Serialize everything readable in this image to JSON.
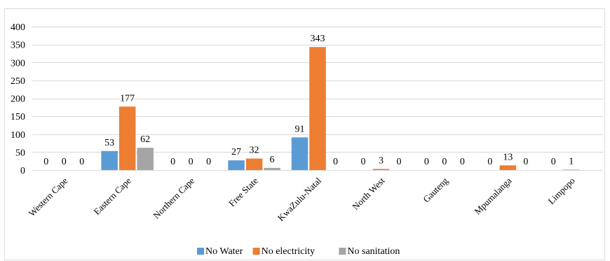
{
  "chart_data": {
    "type": "bar",
    "categories": [
      "Western Cape",
      "Eastern Cape",
      "Northern Cape",
      "Free State",
      "KwaZulu-Natal",
      "North West",
      "Gauteng",
      "Mpumalanga",
      "Limpopo"
    ],
    "series": [
      {
        "name": "No Water",
        "values": [
          0,
          53,
          0,
          27,
          91,
          0,
          0,
          0,
          0
        ],
        "color": "#5b9bd5"
      },
      {
        "name": "No electricity",
        "values": [
          0,
          177,
          0,
          32,
          343,
          3,
          0,
          13,
          1
        ],
        "color": "#ed7d31"
      },
      {
        "name": "No sanitation",
        "values": [
          0,
          62,
          0,
          6,
          0,
          0,
          0,
          0,
          null
        ],
        "color": "#a5a5a5"
      }
    ],
    "ylim": [
      0,
      400
    ],
    "yticks": [
      0,
      50,
      100,
      150,
      200,
      250,
      300,
      350,
      400
    ],
    "grid": true,
    "legend": "bottom",
    "title": "",
    "xlabel": "",
    "ylabel": ""
  }
}
